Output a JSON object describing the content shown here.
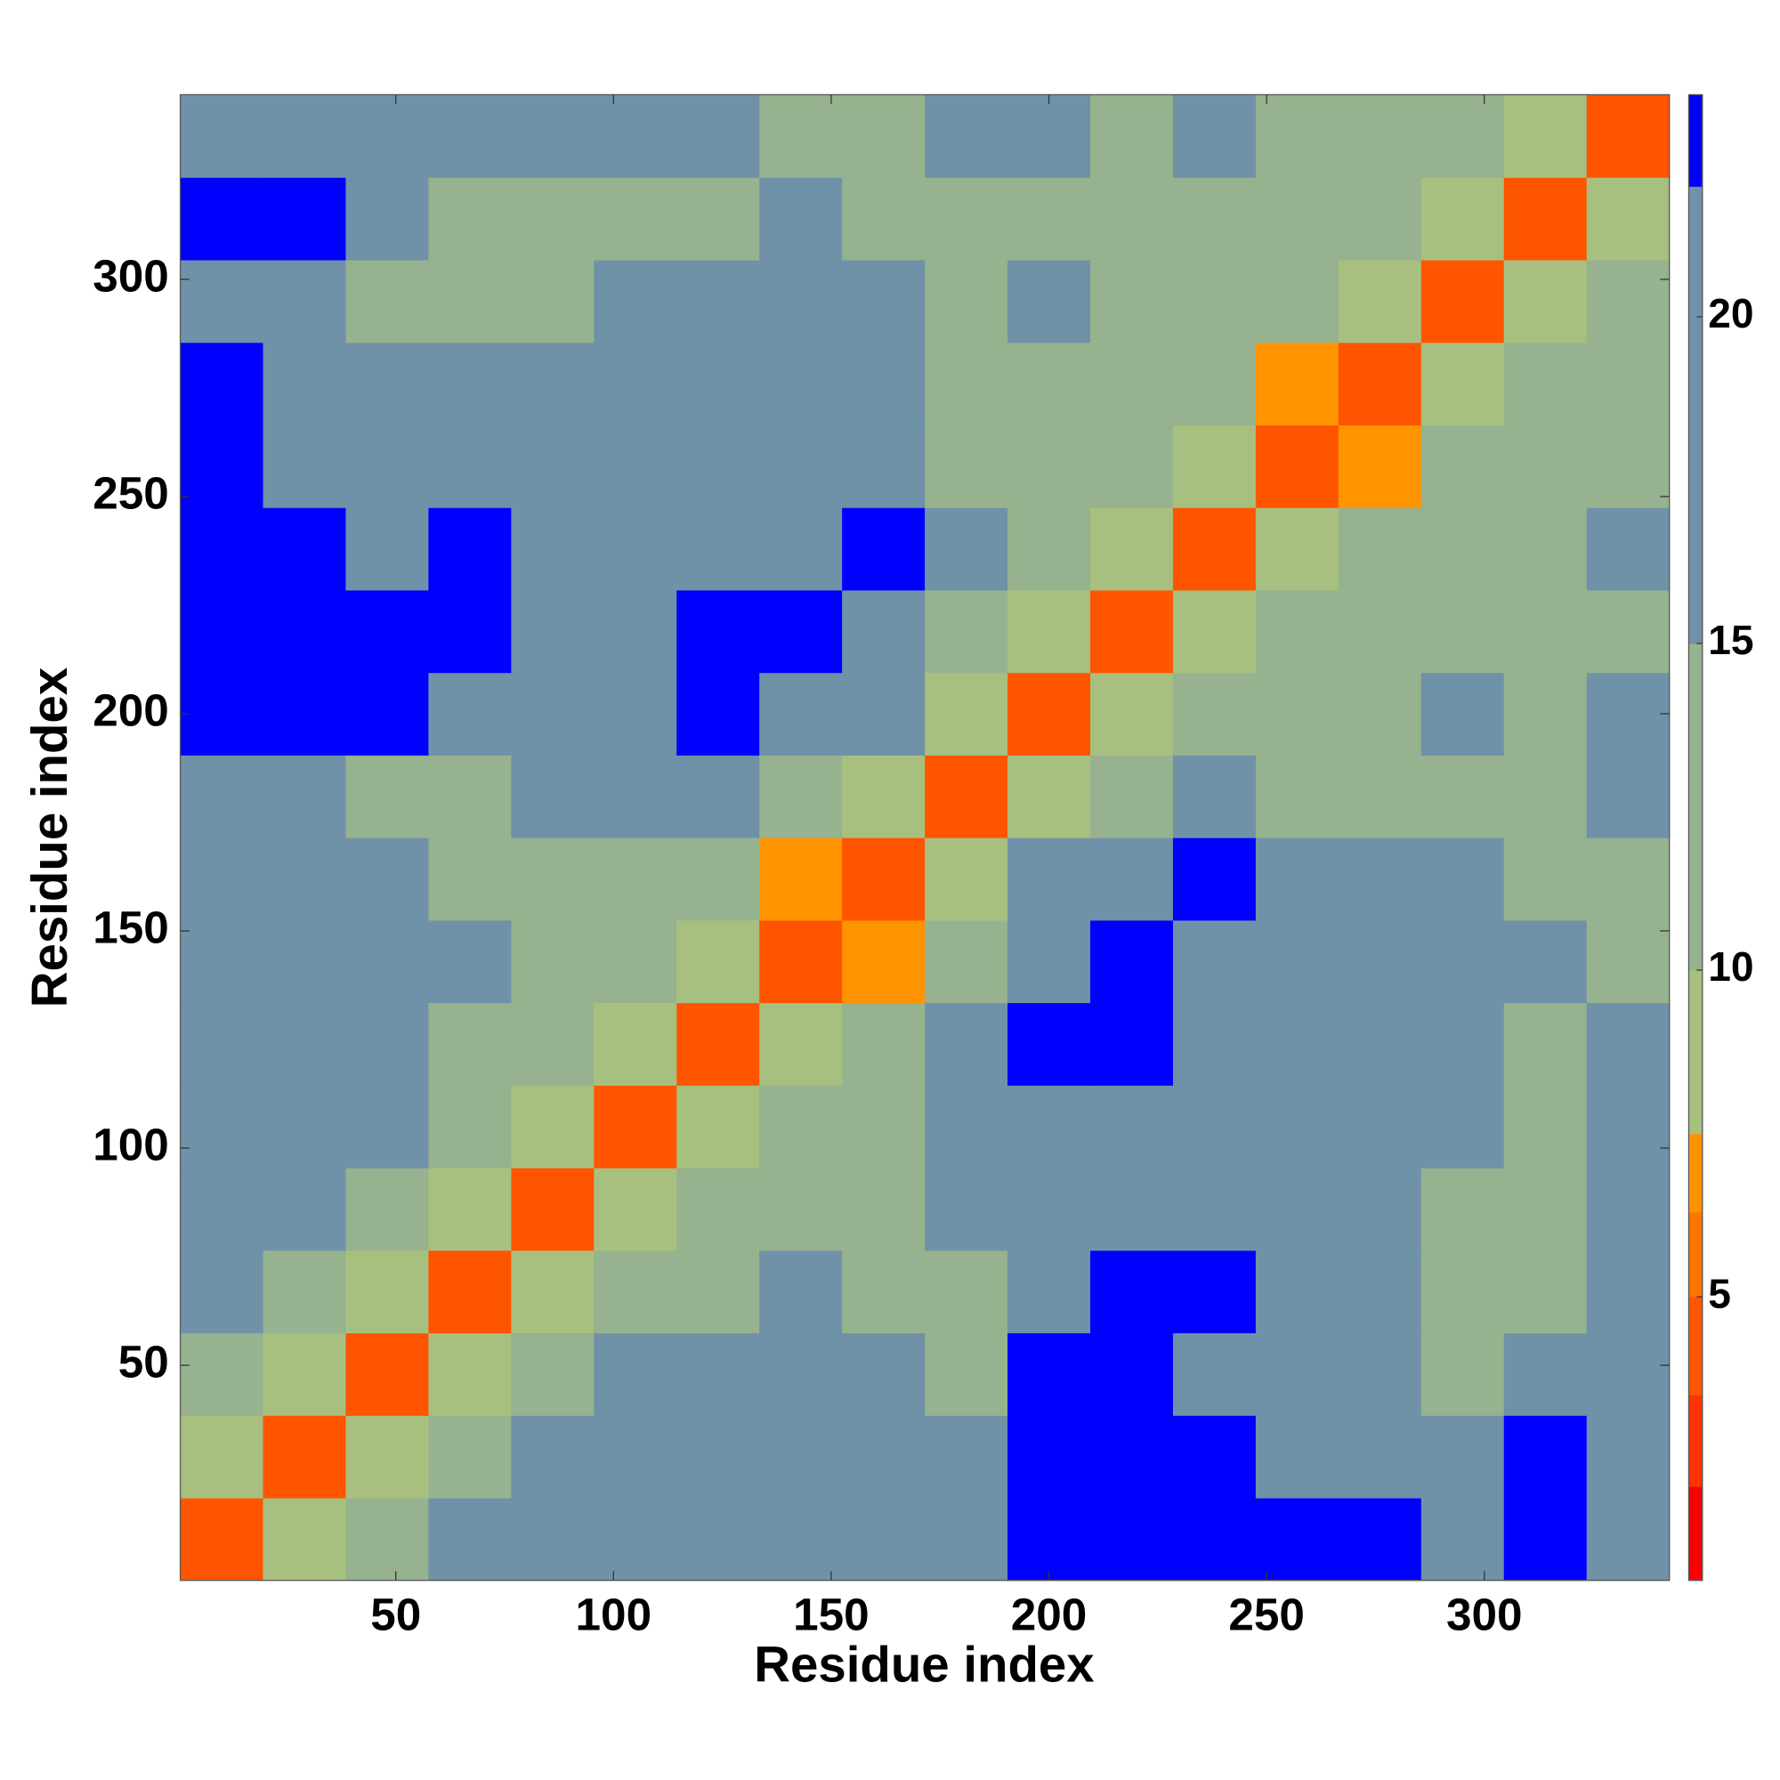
{
  "chart_data": {
    "type": "heatmap",
    "xlabel": "Residue index",
    "ylabel": "Residue index",
    "x": [
      10,
      29,
      48,
      67,
      86,
      105,
      124,
      143,
      162,
      181,
      200,
      219,
      238,
      257,
      276,
      295,
      314,
      333
    ],
    "y": [
      10,
      29,
      48,
      67,
      86,
      105,
      124,
      143,
      162,
      181,
      200,
      219,
      238,
      257,
      276,
      295,
      314,
      333
    ],
    "z": [
      [
        5,
        10,
        12,
        16,
        20,
        17,
        16,
        18,
        20,
        17,
        23,
        23,
        23,
        23,
        23,
        22,
        23,
        20
      ],
      [
        10,
        5,
        10,
        13,
        18,
        17,
        16,
        16,
        20,
        18,
        23,
        23,
        23,
        20,
        22,
        20,
        23,
        21
      ],
      [
        12,
        10,
        5,
        10,
        14,
        20,
        21,
        18,
        20,
        14,
        23,
        23,
        21,
        17,
        20,
        15,
        21,
        20
      ],
      [
        16,
        13,
        10,
        5,
        10,
        13,
        15,
        17,
        15,
        14,
        22,
        23,
        23,
        20,
        17,
        12,
        14,
        21
      ],
      [
        20,
        18,
        14,
        10,
        5,
        8,
        12,
        14,
        15,
        17,
        19,
        21,
        22,
        20,
        18,
        15,
        13,
        20
      ],
      [
        17,
        17,
        20,
        13,
        8,
        5,
        9,
        12,
        14,
        16,
        20,
        22,
        22,
        21,
        19,
        16,
        14,
        20
      ],
      [
        16,
        16,
        21,
        15,
        12,
        9,
        5,
        8,
        11,
        17,
        23,
        23,
        22,
        21,
        20,
        18,
        15,
        16
      ],
      [
        18,
        16,
        18,
        17,
        14,
        12,
        8,
        5,
        7,
        12,
        22,
        23,
        22,
        18,
        21,
        20,
        16,
        13
      ],
      [
        20,
        20,
        20,
        15,
        15,
        14,
        11,
        7,
        5,
        9,
        18,
        22,
        23,
        17,
        19,
        20,
        15,
        11
      ],
      [
        17,
        18,
        14,
        14,
        17,
        16,
        17,
        12,
        9,
        5,
        9,
        14,
        16,
        14,
        13,
        12,
        12,
        16
      ],
      [
        23,
        23,
        23,
        22,
        19,
        20,
        23,
        22,
        18,
        9,
        5,
        8,
        11,
        14,
        13,
        16,
        14,
        18
      ],
      [
        23,
        23,
        23,
        23,
        21,
        22,
        23,
        23,
        22,
        14,
        8,
        5,
        8,
        12,
        14,
        14,
        13,
        15
      ],
      [
        23,
        23,
        21,
        23,
        22,
        22,
        22,
        22,
        23,
        16,
        11,
        8,
        5,
        8,
        11,
        13,
        14,
        16
      ],
      [
        23,
        20,
        17,
        20,
        20,
        21,
        21,
        18,
        17,
        14,
        14,
        12,
        8,
        5,
        7,
        11,
        13,
        12
      ],
      [
        23,
        22,
        20,
        17,
        18,
        19,
        20,
        21,
        19,
        13,
        13,
        14,
        11,
        7,
        5,
        8,
        12,
        14
      ],
      [
        22,
        20,
        15,
        12,
        15,
        16,
        18,
        20,
        20,
        12,
        16,
        14,
        13,
        11,
        8,
        5,
        8,
        12
      ],
      [
        23,
        23,
        21,
        14,
        13,
        14,
        15,
        16,
        15,
        12,
        14,
        13,
        14,
        13,
        12,
        8,
        5,
        8
      ],
      [
        20,
        21,
        20,
        21,
        20,
        20,
        16,
        13,
        11,
        16,
        18,
        15,
        16,
        12,
        14,
        12,
        8,
        5
      ]
    ],
    "xlim": [
      0.5,
      342.5
    ],
    "ylim": [
      0.5,
      342.5
    ],
    "xticks": [
      50,
      100,
      150,
      200,
      250,
      300
    ],
    "yticks": [
      50,
      100,
      150,
      200,
      250,
      300
    ],
    "zlim": [
      0.66,
      23.4
    ],
    "zticks": [
      5,
      10,
      15,
      20
    ],
    "color_levels": [
      {
        "max": 2.1,
        "color": "#ff0000"
      },
      {
        "max": 3.5,
        "color": "#ff3300"
      },
      {
        "max": 5,
        "color": "#ff5500"
      },
      {
        "max": 6.3,
        "color": "#ff7400"
      },
      {
        "max": 7.5,
        "color": "#ff9400"
      },
      {
        "max": 10,
        "color": "#a8c07f"
      },
      {
        "max": 15,
        "color": "#97b28e"
      },
      {
        "max": 22,
        "color": "#6f92a8"
      },
      {
        "max": 23.4,
        "color": "#0000ff"
      }
    ]
  }
}
